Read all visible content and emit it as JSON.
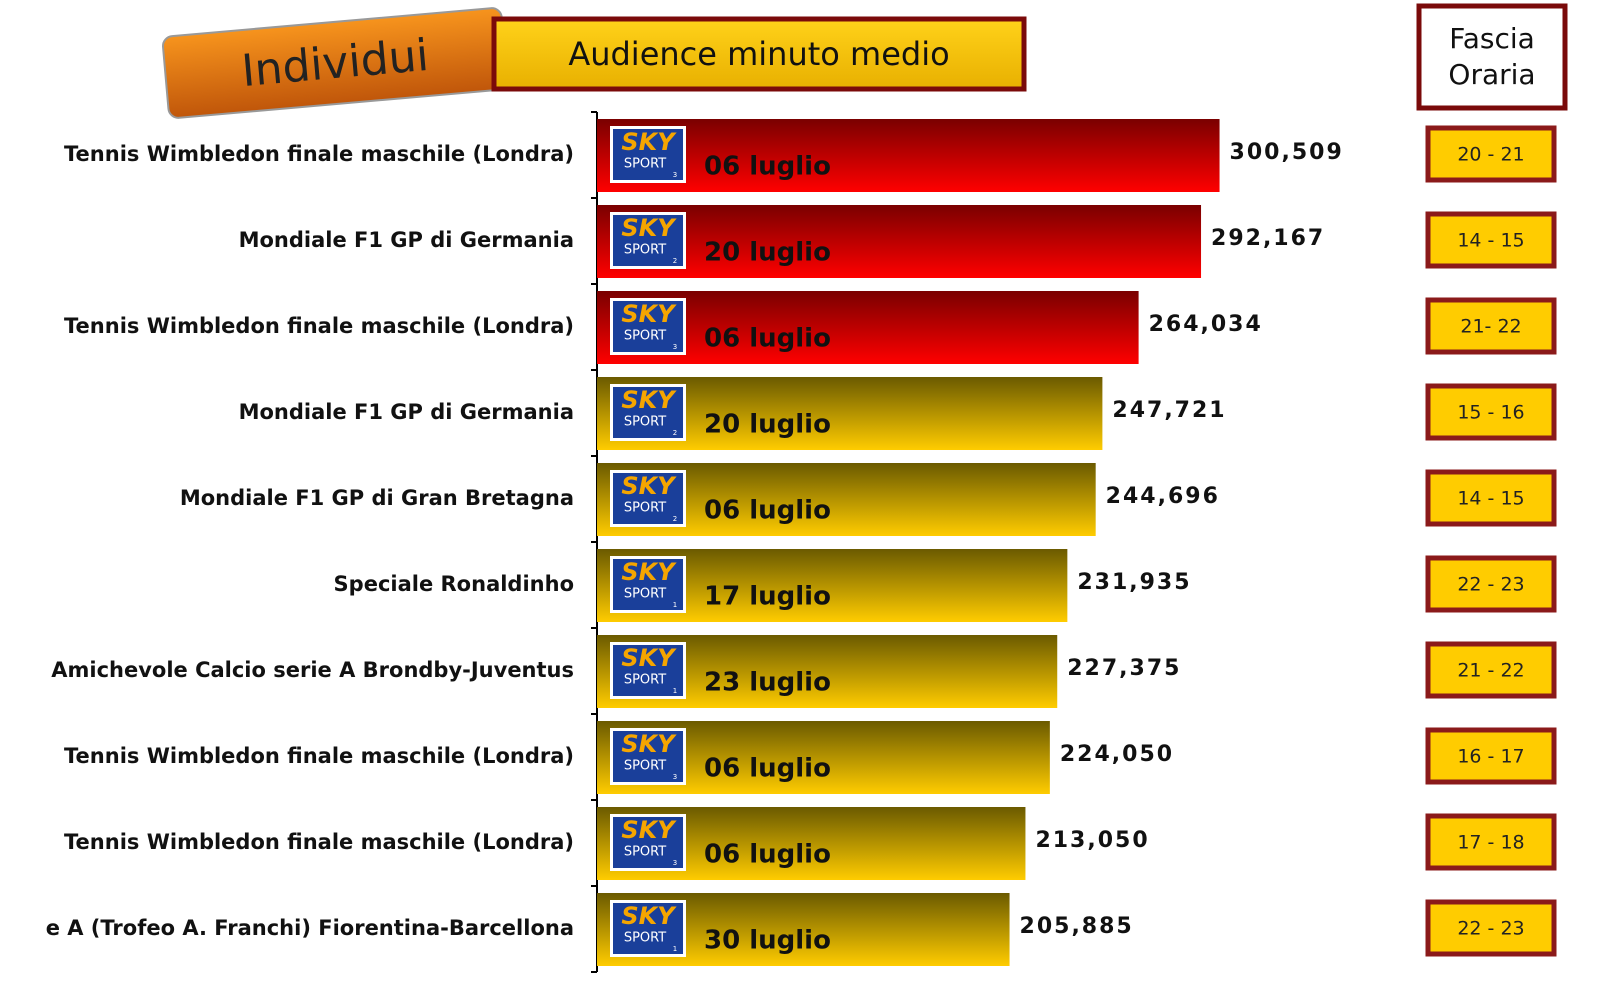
{
  "chart_data": {
    "type": "bar",
    "orientation": "horizontal",
    "badge": "Individui",
    "title": "Audience minuto medio",
    "side_header": "Fascia Oraria",
    "categories": [
      "Tennis Wimbledon finale maschile (Londra)",
      "Mondiale F1 GP di Germania",
      "Tennis Wimbledon finale maschile (Londra)",
      "Mondiale F1 GP di Germania",
      "Mondiale F1 GP di Gran Bretagna",
      "Speciale Ronaldinho",
      "Amichevole Calcio serie A Brondby-Juventus",
      "Tennis Wimbledon finale maschile (Londra)",
      "Tennis Wimbledon finale maschile (Londra)",
      "e A (Trofeo A. Franchi) Fiorentina-Barcellona"
    ],
    "values": [
      300509,
      292167,
      264034,
      247721,
      244696,
      231935,
      227375,
      224050,
      213050,
      205885
    ],
    "value_labels": [
      "300,509",
      "292,167",
      "264,034",
      "247,721",
      "244,696",
      "231,935",
      "227,375",
      "224,050",
      "213,050",
      "205,885"
    ],
    "dates": [
      "06 luglio",
      "20 luglio",
      "06 luglio",
      "20 luglio",
      "06 luglio",
      "17 luglio",
      "23 luglio",
      "06 luglio",
      "06 luglio",
      "30 luglio"
    ],
    "time_slots": [
      "20 - 21",
      "14 - 15",
      "21- 22",
      "15 - 16",
      "14 - 15",
      "22 - 23",
      "21 - 22",
      "16 - 17",
      "17 - 18",
      "22 - 23"
    ],
    "logo": {
      "brand": "SKY",
      "sport": "SPORT"
    },
    "channels": [
      "3",
      "2",
      "3",
      "2",
      "2",
      "1",
      "1",
      "3",
      "3",
      "1"
    ],
    "bar_colors": [
      [
        "#7a0000",
        "#ff0000"
      ],
      [
        "#7a0000",
        "#ff0000"
      ],
      [
        "#7a0000",
        "#ff0000"
      ],
      [
        "#6b5a00",
        "#ffcc00"
      ],
      [
        "#6b5a00",
        "#ffcc00"
      ],
      [
        "#6b5a00",
        "#ffcc00"
      ],
      [
        "#6b5a00",
        "#ffcc00"
      ],
      [
        "#6b5a00",
        "#ffcc00"
      ],
      [
        "#6b5a00",
        "#ffcc00"
      ],
      [
        "#6b5a00",
        "#ffcc00"
      ]
    ],
    "xlim": [
      20000,
      330000
    ]
  }
}
